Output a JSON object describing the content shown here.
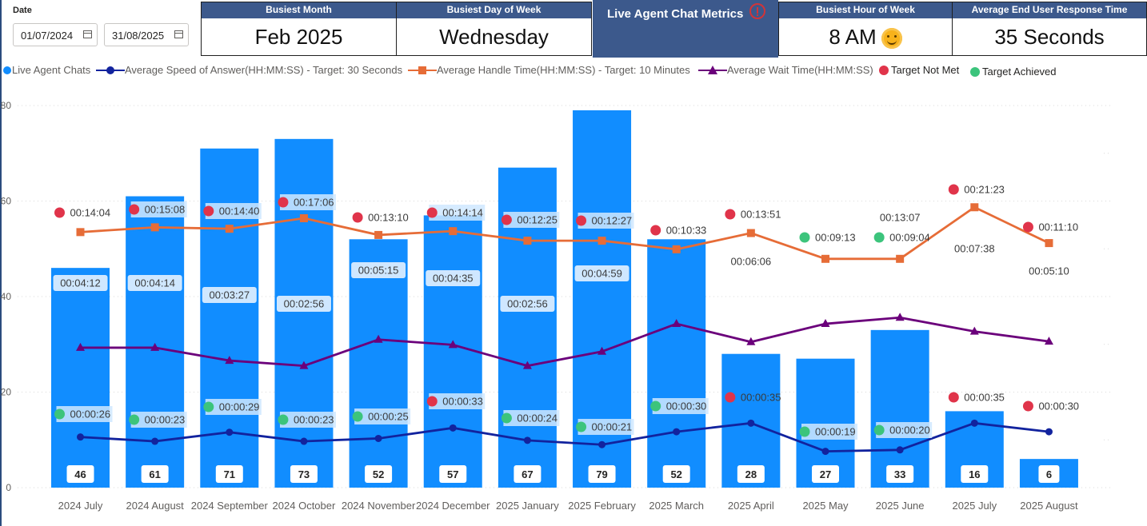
{
  "filters": {
    "label": "Date",
    "start": "01/07/2024",
    "end": "31/08/2025",
    "calendar_icon": "calendar-icon"
  },
  "kpis": {
    "busiest_month": {
      "label": "Busiest Month",
      "value": "Feb 2025"
    },
    "busiest_day": {
      "label": "Busiest Day of Week",
      "value": "Wednesday"
    },
    "busiest_hour": {
      "label": "Busiest Hour of Week",
      "value": "8 AM",
      "icon": "smiley-sun-icon"
    },
    "avg_response": {
      "label": "Average End User Response Time",
      "value": "35 Seconds"
    }
  },
  "banner": {
    "title": "Live Agent Chat Metrics",
    "icon": "info-icon"
  },
  "legend": {
    "chats": "Live Agent Chats",
    "asa": "Average Speed of Answer(HH:MM:SS) - Target: 30 Seconds",
    "aht": "Average Handle Time(HH:MM:SS) - Target: 10 Minutes",
    "awt": "Average Wait Time(HH:MM:SS)",
    "not_met": "Target Not Met",
    "achieved": "Target Achieved"
  },
  "colors": {
    "bar": "#118dff",
    "asa": "#12239e",
    "aht": "#e66c37",
    "awt": "#6b007b",
    "not_met": "#e0344a",
    "achieved": "#3cc47c",
    "header": "#3c598c"
  },
  "chart_data": {
    "type": "bar",
    "categories": [
      "2024 July",
      "2024 August",
      "2024 September",
      "2024 October",
      "2024 November",
      "2024 December",
      "2025 January",
      "2025 February",
      "2025 March",
      "2025 April",
      "2025 May",
      "2025 June",
      "2025 July",
      "2025 August"
    ],
    "ylim": [
      0,
      80
    ],
    "yticks": [
      0,
      20,
      40,
      60,
      80
    ],
    "grid": true,
    "legend_position": "top",
    "series": [
      {
        "name": "Live Agent Chats",
        "type": "bar",
        "values": [
          46,
          61,
          71,
          73,
          52,
          57,
          67,
          79,
          52,
          28,
          27,
          33,
          16,
          6
        ],
        "labels": [
          "46",
          "61",
          "71",
          "73",
          "52",
          "57",
          "67",
          "79",
          "52",
          "28",
          "27",
          "33",
          "16",
          "6"
        ]
      },
      {
        "name": "Average Speed of Answer(HH:MM:SS) - Target: 30 Seconds",
        "type": "line",
        "marker": "circle",
        "labels": [
          "00:00:26",
          "00:00:23",
          "00:00:29",
          "00:00:23",
          "00:00:25",
          "00:00:33",
          "00:00:24",
          "00:00:21",
          "00:00:30",
          "00:00:35",
          "00:00:19",
          "00:00:20",
          "00:00:35",
          "00:00:30"
        ],
        "status": [
          "met",
          "met",
          "met",
          "met",
          "met",
          "not",
          "met",
          "met",
          "met",
          "not",
          "met",
          "met",
          "not",
          "not"
        ]
      },
      {
        "name": "Average Handle Time(HH:MM:SS) - Target: 10 Minutes",
        "type": "line",
        "marker": "square",
        "labels": [
          "00:14:04",
          "00:15:08",
          "00:14:40",
          "00:17:06",
          "00:13:10",
          "00:14:14",
          "00:12:25",
          "00:12:27",
          "00:10:33",
          "00:13:51",
          "00:09:13",
          "00:09:04",
          "00:21:23",
          "00:11:10"
        ],
        "status": [
          "not",
          "not",
          "not",
          "not",
          "not",
          "not",
          "not",
          "not",
          "not",
          "not",
          "met",
          "met",
          "not",
          "not"
        ]
      },
      {
        "name": "Average Wait Time(HH:MM:SS)",
        "type": "line",
        "marker": "triangle",
        "labels": [
          "00:04:12",
          "00:04:14",
          "00:03:27",
          "00:02:56",
          "00:05:15",
          "00:04:35",
          "00:02:56",
          "00:04:59",
          "",
          "00:06:06",
          "",
          "00:13:07",
          "00:07:38",
          "00:05:10"
        ]
      }
    ]
  }
}
